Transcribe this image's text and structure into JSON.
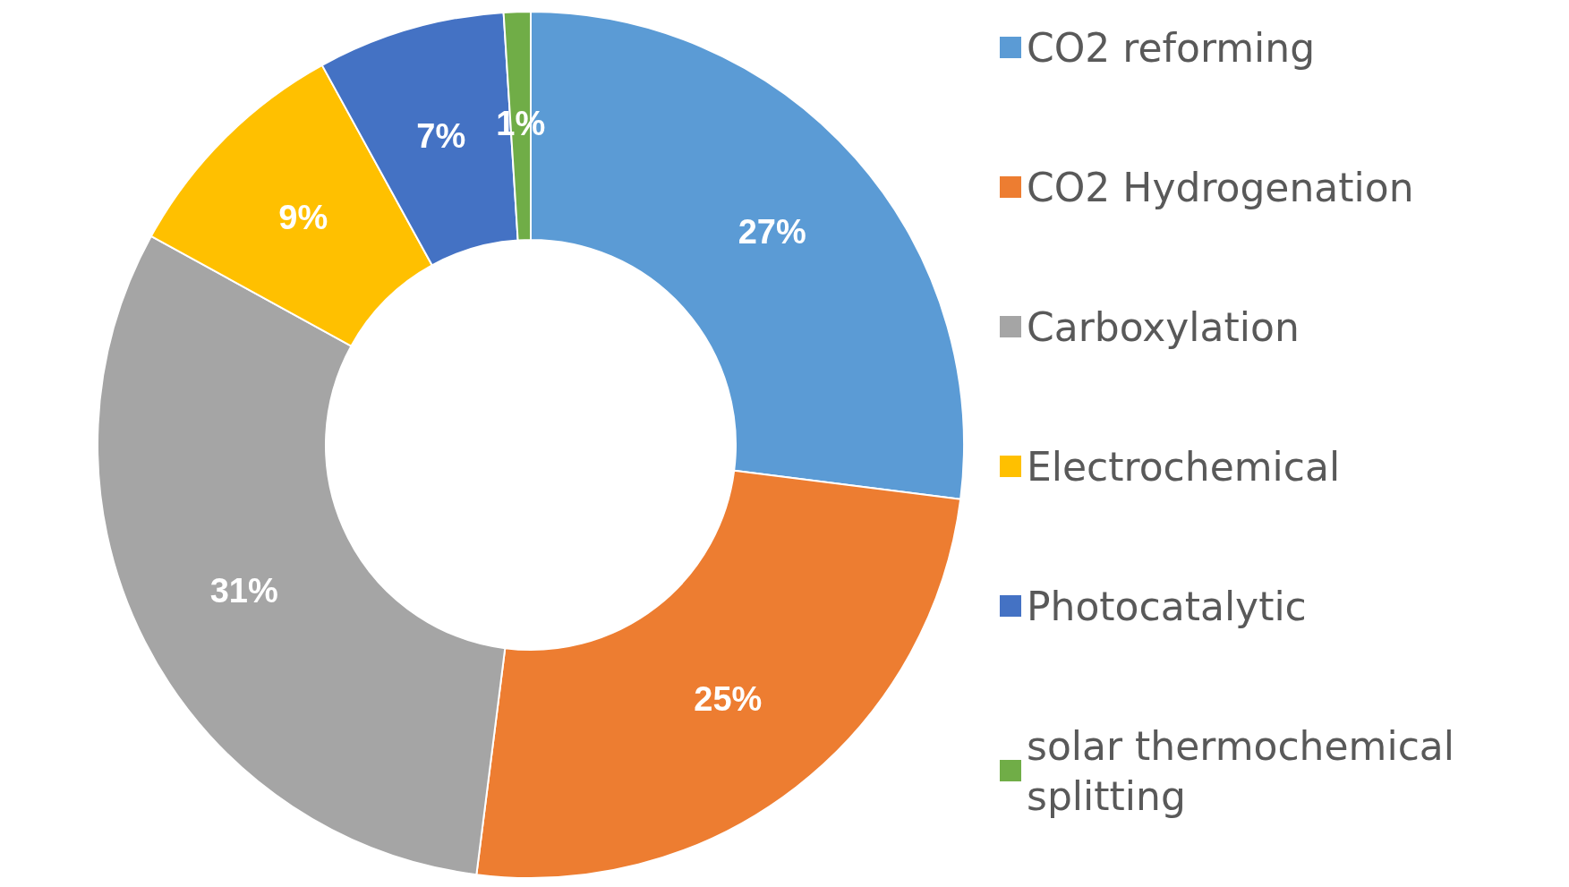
{
  "chart_data": {
    "type": "donut",
    "categories": [
      "CO2 reforming",
      "CO2 Hydrogenation",
      "Carboxylation",
      "Electrochemical",
      "Photocatalytic",
      "solar thermochemical splitting"
    ],
    "values": [
      27,
      25,
      31,
      9,
      7,
      1
    ],
    "colors": [
      "#5b9bd5",
      "#ed7d31",
      "#a5a5a5",
      "#ffc000",
      "#4472c4",
      "#70ad47"
    ],
    "value_labels": [
      "27%",
      "25%",
      "31%",
      "9%",
      "7%",
      "1%"
    ],
    "legend": "right"
  }
}
